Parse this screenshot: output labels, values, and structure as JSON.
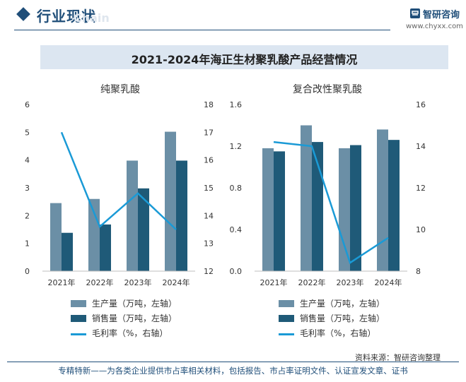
{
  "header": {
    "title": "行业现状",
    "subtitle": "Chain"
  },
  "logo": {
    "name": "智研咨询",
    "url": "www.chyxx.com"
  },
  "main_title": "2021-2024年海正生材聚乳酸产品经营情况",
  "colors": {
    "production": "#6b8fa6",
    "sales": "#1f5a78",
    "margin": "#1a9ad6",
    "title_bar": "#dce6f1"
  },
  "legend": {
    "production": "生产量（万吨，左轴）",
    "sales": "销售量（万吨，左轴）",
    "margin": "毛利率（%，右轴）"
  },
  "chart_data": [
    {
      "type": "bar",
      "title": "纯聚乳酸",
      "categories": [
        "2021年",
        "2022年",
        "2023年",
        "2024年"
      ],
      "series": [
        {
          "name": "生产量（万吨，左轴）",
          "kind": "bar",
          "axis": "left",
          "values": [
            2.45,
            2.6,
            3.98,
            5.02
          ]
        },
        {
          "name": "销售量（万吨，左轴）",
          "kind": "bar",
          "axis": "left",
          "values": [
            1.38,
            1.68,
            2.98,
            3.98
          ]
        },
        {
          "name": "毛利率（%，右轴）",
          "kind": "line",
          "axis": "right",
          "values": [
            17.0,
            13.6,
            14.8,
            13.5
          ]
        }
      ],
      "ylim_left": [
        0,
        6
      ],
      "yticks_left": [
        "0",
        "1",
        "2",
        "3",
        "4",
        "5",
        "6"
      ],
      "ylim_right": [
        12,
        18
      ],
      "yticks_right": [
        "12",
        "13",
        "14",
        "15",
        "16",
        "17",
        "18"
      ],
      "grid": false
    },
    {
      "type": "bar",
      "title": "复合改性聚乳酸",
      "categories": [
        "2021年",
        "2022年",
        "2023年",
        "2024年"
      ],
      "series": [
        {
          "name": "生产量（万吨，左轴）",
          "kind": "bar",
          "axis": "left",
          "values": [
            1.18,
            1.4,
            1.18,
            1.36
          ]
        },
        {
          "name": "销售量（万吨，左轴）",
          "kind": "bar",
          "axis": "left",
          "values": [
            1.15,
            1.24,
            1.21,
            1.26
          ]
        },
        {
          "name": "毛利率（%，右轴）",
          "kind": "line",
          "axis": "right",
          "values": [
            14.2,
            14.0,
            8.4,
            9.6
          ]
        }
      ],
      "ylim_left": [
        0,
        1.6
      ],
      "yticks_left": [
        "0.0",
        "0.4",
        "0.8",
        "1.2",
        "1.6"
      ],
      "ylim_right": [
        8,
        16
      ],
      "yticks_right": [
        "8",
        "10",
        "12",
        "14",
        "16"
      ],
      "grid": false
    }
  ],
  "source": "资料来源：智研咨询整理",
  "footer": "专精特新——为各类企业提供市占率相关材料，包括报告、市占率证明文件、认证宣发文章、证书"
}
